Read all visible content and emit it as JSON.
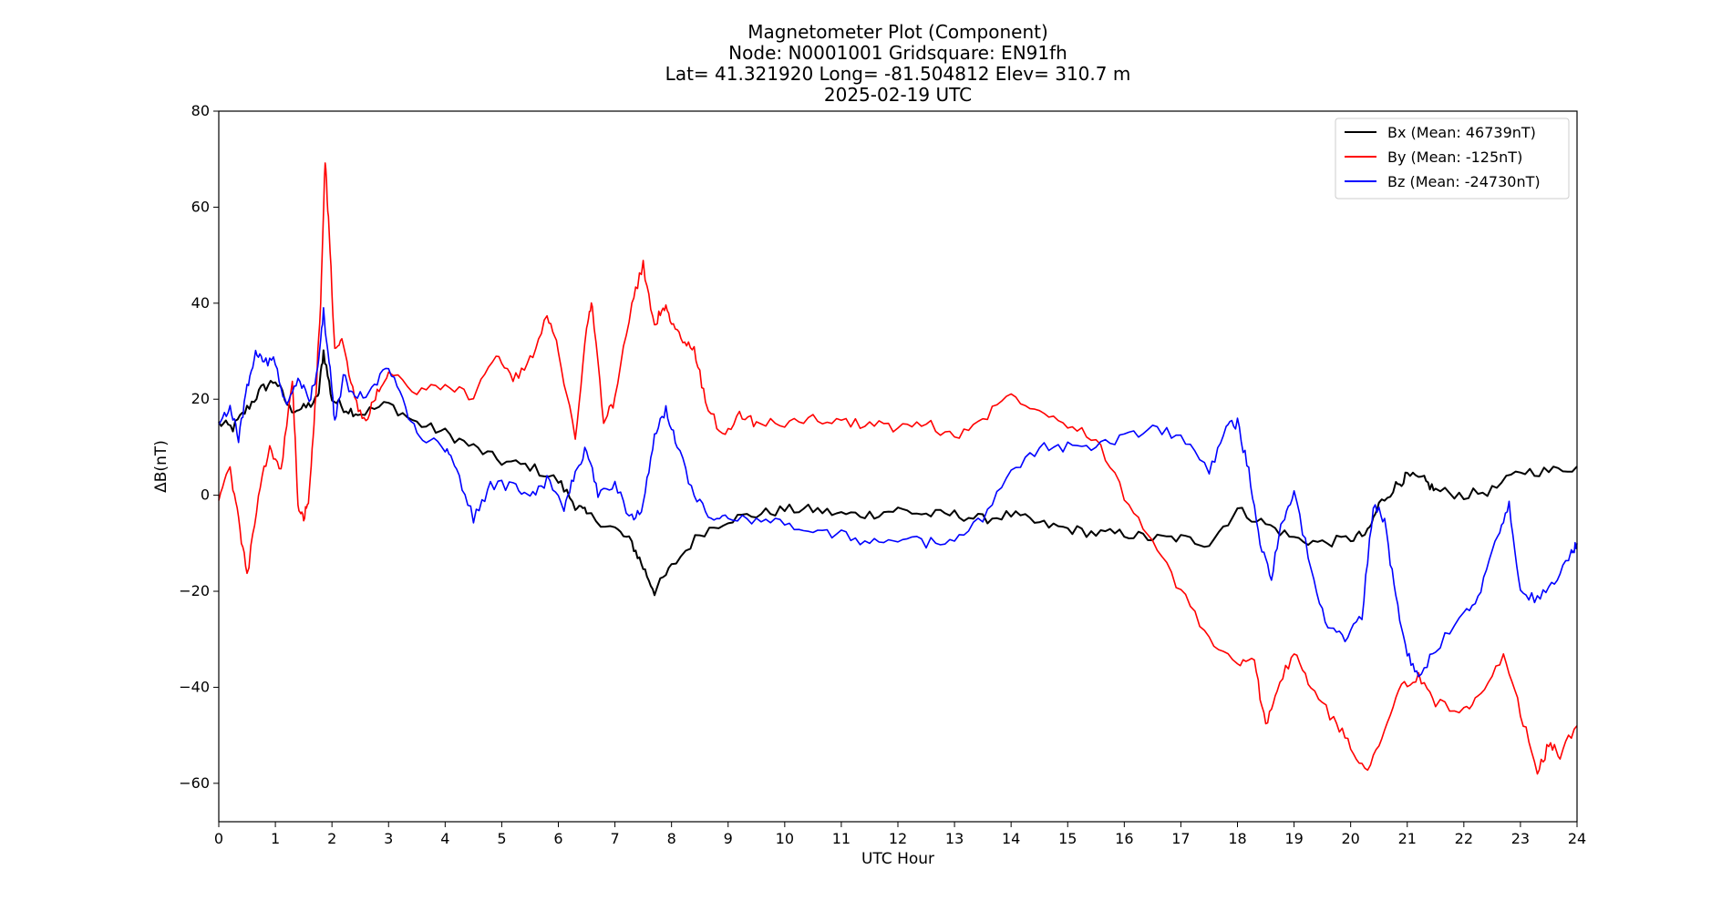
{
  "chart_data": {
    "type": "line",
    "title_lines": [
      "Magnetometer Plot (Component)",
      "Node:  N0001001     Gridsquare:  EN91fh",
      "Lat= 41.321920    Long= -81.504812    Elev= 310.7 m",
      "2025-02-19  UTC"
    ],
    "xlabel": "UTC Hour",
    "ylabel": "ΔB(nT)",
    "xlim": [
      0,
      24
    ],
    "ylim": [
      -68,
      80
    ],
    "xticks": [
      0,
      1,
      2,
      3,
      4,
      5,
      6,
      7,
      8,
      9,
      10,
      11,
      12,
      13,
      14,
      15,
      16,
      17,
      18,
      19,
      20,
      21,
      22,
      23,
      24
    ],
    "yticks": [
      80,
      60,
      40,
      20,
      0,
      -20,
      -40,
      -60
    ],
    "ytick_labels": [
      "80",
      "60",
      "40",
      "20",
      "0",
      "−20",
      "−40",
      "−60"
    ],
    "grid": false,
    "legend_position": "top-right",
    "series": [
      {
        "name": "Bx (Mean: 46739nT)",
        "color": "#000000",
        "x": [
          0,
          0.25,
          0.5,
          0.75,
          1,
          1.25,
          1.5,
          1.75,
          1.85,
          2,
          2.25,
          2.5,
          3,
          3.5,
          4,
          4.5,
          5,
          5.5,
          6,
          6.3,
          6.5,
          7,
          7.3,
          7.5,
          7.7,
          8,
          8.5,
          9,
          9.5,
          10,
          10.5,
          11,
          11.5,
          12,
          12.5,
          13,
          13.5,
          14,
          14.5,
          15,
          15.5,
          16,
          16.5,
          17,
          17.5,
          18,
          18.5,
          19,
          19.5,
          20,
          20.3,
          20.5,
          20.8,
          21,
          21.3,
          21.5,
          22,
          22.5,
          23,
          23.5,
          24
        ],
        "y": [
          15,
          14,
          18,
          22,
          24,
          18,
          18,
          20,
          30,
          20,
          18,
          17,
          19,
          15,
          13,
          10,
          7,
          6,
          3,
          -2,
          -4,
          -7,
          -10,
          -15,
          -20,
          -15,
          -8,
          -5,
          -4,
          -3,
          -3,
          -4,
          -4,
          -3,
          -4,
          -4,
          -5,
          -4,
          -6,
          -7,
          -8,
          -8,
          -9,
          -9,
          -10,
          -3,
          -6,
          -9,
          -10,
          -9,
          -8,
          -2,
          2,
          4,
          3,
          1,
          0,
          1,
          5,
          5,
          6
        ]
      },
      {
        "name": "By (Mean: -125nT)",
        "color": "#ff0000",
        "x": [
          0,
          0.2,
          0.35,
          0.5,
          0.7,
          0.9,
          1.1,
          1.3,
          1.4,
          1.5,
          1.6,
          1.7,
          1.8,
          1.88,
          1.95,
          2.05,
          2.2,
          2.4,
          2.6,
          2.8,
          3,
          3.5,
          4,
          4.5,
          4.9,
          5.2,
          5.5,
          5.8,
          6,
          6.3,
          6.5,
          6.6,
          6.8,
          7,
          7.3,
          7.5,
          7.7,
          7.85,
          8,
          8.2,
          8.4,
          8.6,
          8.9,
          9.2,
          9.5,
          10,
          10.5,
          11,
          11.5,
          12,
          12.5,
          13,
          13.5,
          14,
          14.5,
          15,
          15.5,
          16,
          16.5,
          17,
          17.5,
          18,
          18.3,
          18.5,
          18.7,
          19,
          19.3,
          19.7,
          20,
          20.3,
          20.6,
          20.9,
          21.2,
          21.5,
          22,
          22.3,
          22.7,
          23,
          23.3,
          23.5,
          23.7,
          24
        ],
        "y": [
          0,
          5,
          -5,
          -17,
          0,
          10,
          5,
          24,
          -2,
          -5,
          0,
          18,
          40,
          70,
          55,
          30,
          32,
          20,
          15,
          22,
          25,
          22,
          23,
          20,
          30,
          24,
          28,
          38,
          30,
          12,
          35,
          40,
          15,
          20,
          40,
          48,
          35,
          40,
          36,
          32,
          30,
          20,
          12,
          17,
          15,
          15,
          16,
          15,
          15,
          14,
          15,
          12,
          16,
          21,
          18,
          15,
          12,
          0,
          -10,
          -20,
          -30,
          -35,
          -35,
          -48,
          -40,
          -33,
          -40,
          -47,
          -52,
          -58,
          -48,
          -40,
          -38,
          -43,
          -45,
          -42,
          -34,
          -45,
          -58,
          -52,
          -54,
          -48
        ]
      },
      {
        "name": "Bz (Mean: -24730nT)",
        "color": "#0000ff",
        "x": [
          0,
          0.2,
          0.35,
          0.5,
          0.65,
          0.8,
          1,
          1.2,
          1.4,
          1.6,
          1.75,
          1.85,
          1.95,
          2.05,
          2.2,
          2.4,
          2.7,
          3,
          3.3,
          3.6,
          4,
          4.2,
          4.5,
          4.8,
          5.2,
          5.5,
          5.8,
          6.1,
          6.3,
          6.5,
          6.7,
          7,
          7.3,
          7.5,
          7.7,
          7.9,
          8.1,
          8.4,
          8.7,
          9,
          9.5,
          10,
          10.5,
          11,
          11.5,
          12,
          12.5,
          13,
          13.5,
          14,
          14.5,
          15,
          15.5,
          16,
          16.5,
          17,
          17.5,
          17.8,
          18,
          18.2,
          18.4,
          18.6,
          18.8,
          19,
          19.3,
          19.6,
          19.9,
          20.2,
          20.4,
          20.6,
          20.8,
          21,
          21.2,
          21.5,
          22,
          22.3,
          22.6,
          22.8,
          23,
          23.3,
          23.6,
          23.9,
          24
        ],
        "y": [
          15,
          18,
          12,
          22,
          30,
          28,
          28,
          18,
          24,
          20,
          26,
          38,
          28,
          15,
          25,
          20,
          22,
          27,
          18,
          12,
          10,
          5,
          -5,
          2,
          2,
          0,
          3,
          -3,
          5,
          10,
          0,
          2,
          -5,
          -2,
          12,
          18,
          10,
          0,
          -5,
          -5,
          -5,
          -6,
          -8,
          -8,
          -10,
          -9,
          -10,
          -9,
          -5,
          5,
          10,
          10,
          10,
          12,
          14,
          12,
          5,
          14,
          15,
          5,
          -10,
          -17,
          -5,
          0,
          -15,
          -28,
          -30,
          -25,
          -2,
          -5,
          -22,
          -33,
          -38,
          -32,
          -25,
          -20,
          -8,
          -2,
          -20,
          -22,
          -18,
          -12,
          -10
        ]
      }
    ]
  }
}
